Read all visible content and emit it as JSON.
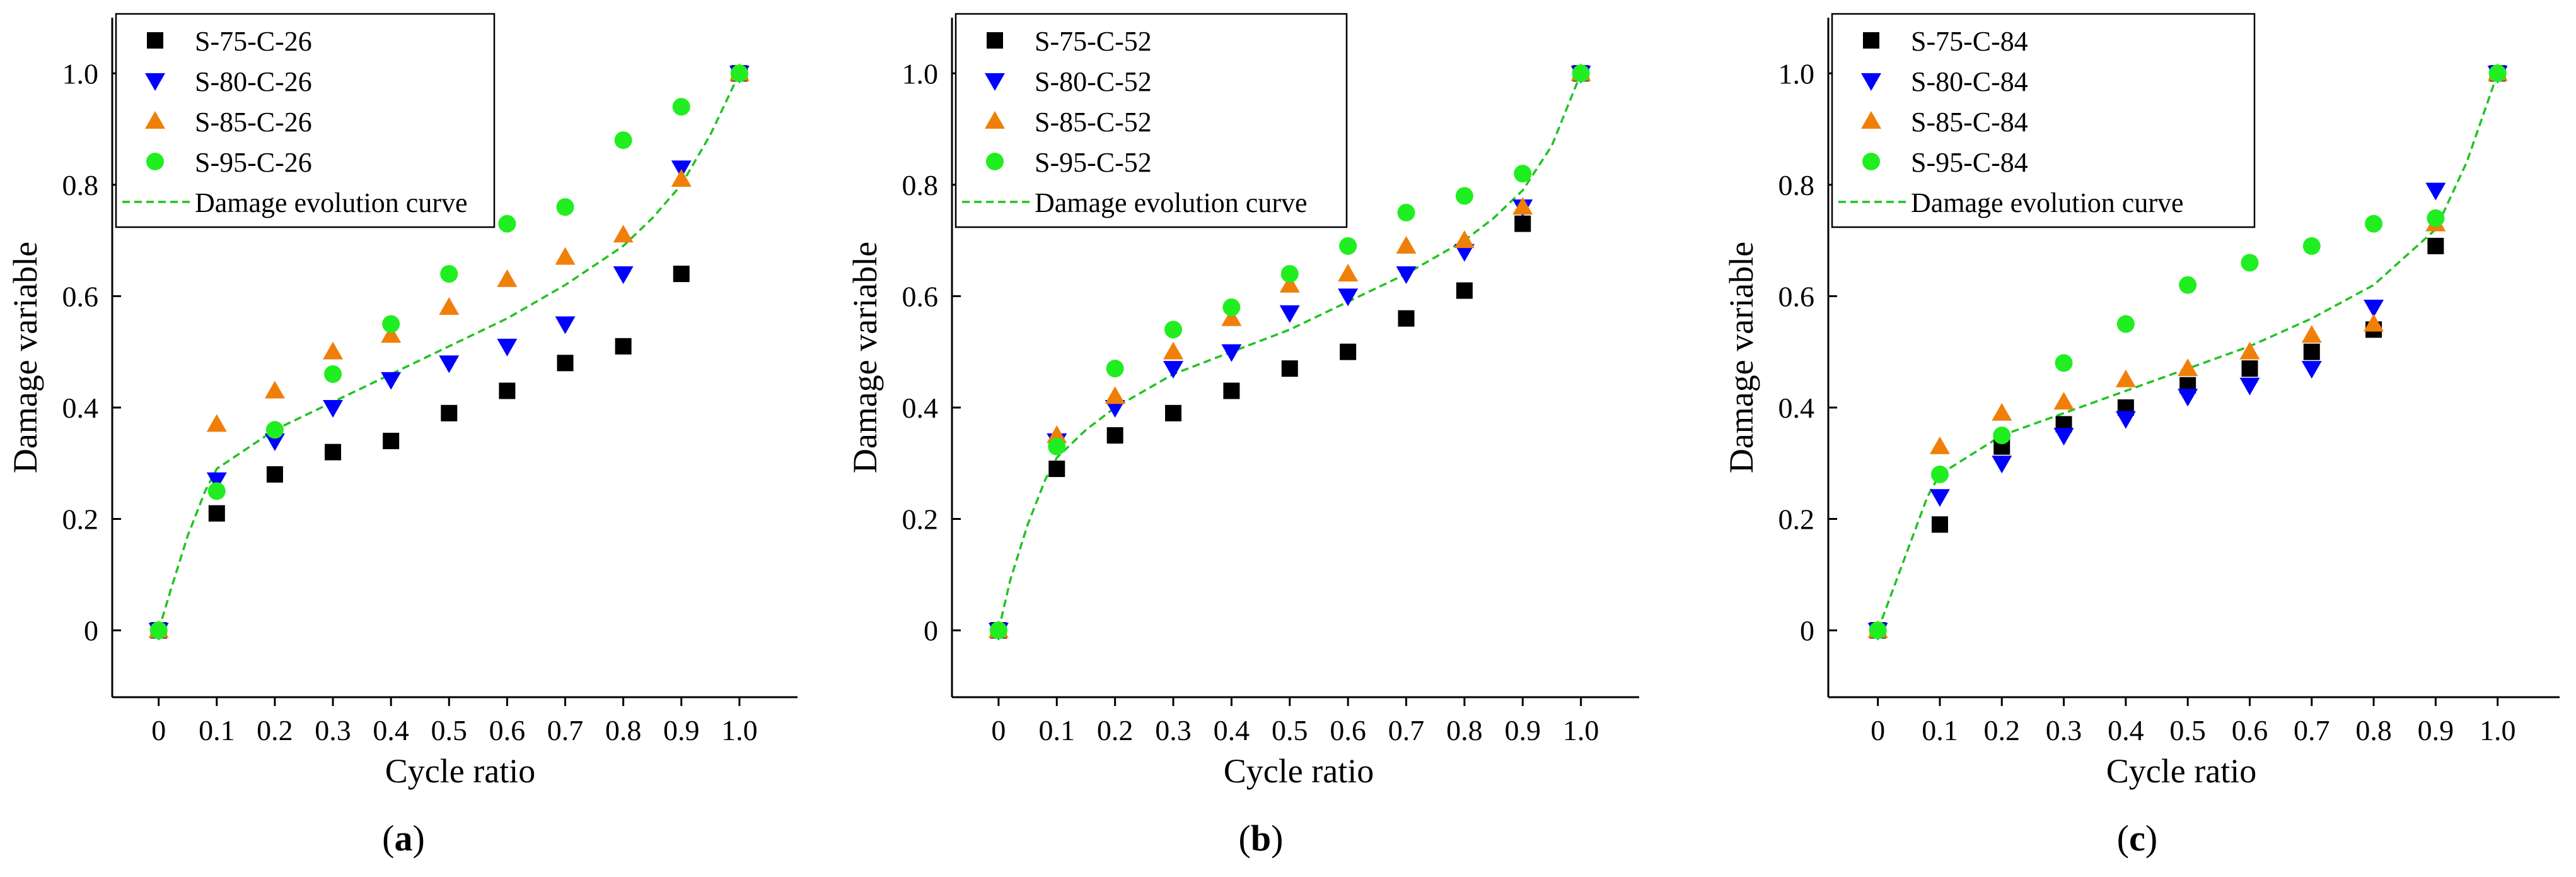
{
  "figure": {
    "panel_labels": [
      "a",
      "b",
      "c"
    ]
  },
  "colors": {
    "S75": "#000000",
    "S80": "#0000ff",
    "S85": "#f07f09",
    "S95": "#21ee21",
    "curve": "#21c321"
  },
  "chart_data": [
    {
      "type": "scatter",
      "panel": "a",
      "xlabel": "Cycle ratio",
      "ylabel": "Damage variable",
      "xlim": [
        -0.08,
        1.1
      ],
      "ylim": [
        -0.12,
        1.1
      ],
      "xticks": [
        0,
        0.1,
        0.2,
        0.3,
        0.4,
        0.5,
        0.6,
        0.7,
        0.8,
        0.9,
        1.0
      ],
      "xtick_labels": [
        "0",
        "0.1",
        "0.2",
        "0.3",
        "0.4",
        "0.5",
        "0.6",
        "0.7",
        "0.8",
        "0.9",
        "1.0"
      ],
      "yticks": [
        0,
        0.2,
        0.4,
        0.6,
        0.8,
        1.0
      ],
      "ytick_labels": [
        "0",
        "0.2",
        "0.4",
        "0.6",
        "0.8",
        "1.0"
      ],
      "legend_position": "top-left",
      "x": [
        0,
        0.1,
        0.2,
        0.3,
        0.4,
        0.5,
        0.6,
        0.7,
        0.8,
        0.9,
        1.0
      ],
      "series": [
        {
          "name": "S-75-C-26",
          "marker": "square",
          "color": "#000000",
          "values": [
            0,
            0.21,
            0.28,
            0.32,
            0.34,
            0.39,
            0.43,
            0.48,
            0.51,
            0.64,
            1.0
          ]
        },
        {
          "name": "S-80-C-26",
          "marker": "triangle-down",
          "color": "#0000ff",
          "values": [
            0,
            0.27,
            0.34,
            0.4,
            0.45,
            0.48,
            0.51,
            0.55,
            0.64,
            0.83,
            1.0
          ]
        },
        {
          "name": "S-85-C-26",
          "marker": "triangle-up",
          "color": "#f07f09",
          "values": [
            0,
            0.37,
            0.43,
            0.5,
            0.53,
            0.58,
            0.63,
            0.67,
            0.71,
            0.81,
            1.0
          ]
        },
        {
          "name": "S-95-C-26",
          "marker": "circle",
          "color": "#21ee21",
          "values": [
            0,
            0.25,
            0.36,
            0.46,
            0.55,
            0.64,
            0.73,
            0.76,
            0.88,
            0.94,
            1.0
          ]
        }
      ],
      "curve": {
        "name": "Damage evolution curve",
        "x": [
          0,
          0.02,
          0.05,
          0.08,
          0.1,
          0.2,
          0.3,
          0.4,
          0.5,
          0.6,
          0.7,
          0.8,
          0.85,
          0.9,
          0.95,
          1.0
        ],
        "y": [
          0,
          0.07,
          0.17,
          0.25,
          0.29,
          0.36,
          0.41,
          0.46,
          0.51,
          0.56,
          0.62,
          0.69,
          0.74,
          0.8,
          0.89,
          1.0
        ]
      }
    },
    {
      "type": "scatter",
      "panel": "b",
      "xlabel": "Cycle ratio",
      "ylabel": "Damage variable",
      "xlim": [
        -0.08,
        1.1
      ],
      "ylim": [
        -0.12,
        1.1
      ],
      "xticks": [
        0,
        0.1,
        0.2,
        0.3,
        0.4,
        0.5,
        0.6,
        0.7,
        0.8,
        0.9,
        1.0
      ],
      "xtick_labels": [
        "0",
        "0.1",
        "0.2",
        "0.3",
        "0.4",
        "0.5",
        "0.6",
        "0.7",
        "0.8",
        "0.9",
        "1.0"
      ],
      "yticks": [
        0,
        0.2,
        0.4,
        0.6,
        0.8,
        1.0
      ],
      "ytick_labels": [
        "0",
        "0.2",
        "0.4",
        "0.6",
        "0.8",
        "1.0"
      ],
      "legend_position": "top-left",
      "x": [
        0,
        0.1,
        0.2,
        0.3,
        0.4,
        0.5,
        0.6,
        0.7,
        0.8,
        0.9,
        1.0
      ],
      "series": [
        {
          "name": "S-75-C-52",
          "marker": "square",
          "color": "#000000",
          "values": [
            0,
            0.29,
            0.35,
            0.39,
            0.43,
            0.47,
            0.5,
            0.56,
            0.61,
            0.73,
            1.0
          ]
        },
        {
          "name": "S-80-C-52",
          "marker": "triangle-down",
          "color": "#0000ff",
          "values": [
            0,
            0.34,
            0.4,
            0.47,
            0.5,
            0.57,
            0.6,
            0.64,
            0.68,
            0.76,
            1.0
          ]
        },
        {
          "name": "S-85-C-52",
          "marker": "triangle-up",
          "color": "#f07f09",
          "values": [
            0,
            0.35,
            0.42,
            0.5,
            0.56,
            0.62,
            0.64,
            0.69,
            0.7,
            0.76,
            1.0
          ]
        },
        {
          "name": "S-95-C-52",
          "marker": "circle",
          "color": "#21ee21",
          "values": [
            0,
            0.33,
            0.47,
            0.54,
            0.58,
            0.64,
            0.69,
            0.75,
            0.78,
            0.82,
            1.0
          ]
        }
      ],
      "curve": {
        "name": "Damage evolution curve",
        "x": [
          0,
          0.02,
          0.05,
          0.08,
          0.1,
          0.15,
          0.2,
          0.3,
          0.4,
          0.5,
          0.6,
          0.7,
          0.8,
          0.85,
          0.9,
          0.95,
          1.0
        ],
        "y": [
          0,
          0.09,
          0.19,
          0.27,
          0.31,
          0.36,
          0.4,
          0.46,
          0.5,
          0.54,
          0.59,
          0.64,
          0.7,
          0.74,
          0.79,
          0.87,
          1.0
        ]
      }
    },
    {
      "type": "scatter",
      "panel": "c",
      "xlabel": "Cycle ratio",
      "ylabel": "Damage variable",
      "xlim": [
        -0.08,
        1.1
      ],
      "ylim": [
        -0.12,
        1.1
      ],
      "xticks": [
        0,
        0.1,
        0.2,
        0.3,
        0.4,
        0.5,
        0.6,
        0.7,
        0.8,
        0.9,
        1.0
      ],
      "xtick_labels": [
        "0",
        "0.1",
        "0.2",
        "0.3",
        "0.4",
        "0.5",
        "0.6",
        "0.7",
        "0.8",
        "0.9",
        "1.0"
      ],
      "yticks": [
        0,
        0.2,
        0.4,
        0.6,
        0.8,
        1.0
      ],
      "ytick_labels": [
        "0",
        "0.2",
        "0.4",
        "0.6",
        "0.8",
        "1.0"
      ],
      "legend_position": "top-left",
      "x": [
        0,
        0.1,
        0.2,
        0.3,
        0.4,
        0.5,
        0.6,
        0.7,
        0.8,
        0.9,
        1.0
      ],
      "series": [
        {
          "name": "S-75-C-84",
          "marker": "square",
          "color": "#000000",
          "values": [
            0,
            0.19,
            0.33,
            0.37,
            0.4,
            0.44,
            0.47,
            0.5,
            0.54,
            0.69,
            1.0
          ]
        },
        {
          "name": "S-80-C-84",
          "marker": "triangle-down",
          "color": "#0000ff",
          "values": [
            0,
            0.24,
            0.3,
            0.35,
            0.38,
            0.42,
            0.44,
            0.47,
            0.58,
            0.79,
            1.0
          ]
        },
        {
          "name": "S-85-C-84",
          "marker": "triangle-up",
          "color": "#f07f09",
          "values": [
            0,
            0.33,
            0.39,
            0.41,
            0.45,
            0.47,
            0.5,
            0.53,
            0.55,
            0.73,
            1.0
          ]
        },
        {
          "name": "S-95-C-84",
          "marker": "circle",
          "color": "#21ee21",
          "values": [
            0,
            0.28,
            0.35,
            0.48,
            0.55,
            0.62,
            0.66,
            0.69,
            0.73,
            0.74,
            1.0
          ]
        }
      ],
      "curve": {
        "name": "Damage evolution curve",
        "x": [
          0,
          0.02,
          0.05,
          0.08,
          0.1,
          0.2,
          0.3,
          0.4,
          0.5,
          0.6,
          0.7,
          0.8,
          0.85,
          0.9,
          0.95,
          1.0
        ],
        "y": [
          0,
          0.06,
          0.15,
          0.24,
          0.28,
          0.35,
          0.39,
          0.43,
          0.47,
          0.51,
          0.56,
          0.62,
          0.67,
          0.72,
          0.84,
          1.0
        ]
      }
    }
  ]
}
